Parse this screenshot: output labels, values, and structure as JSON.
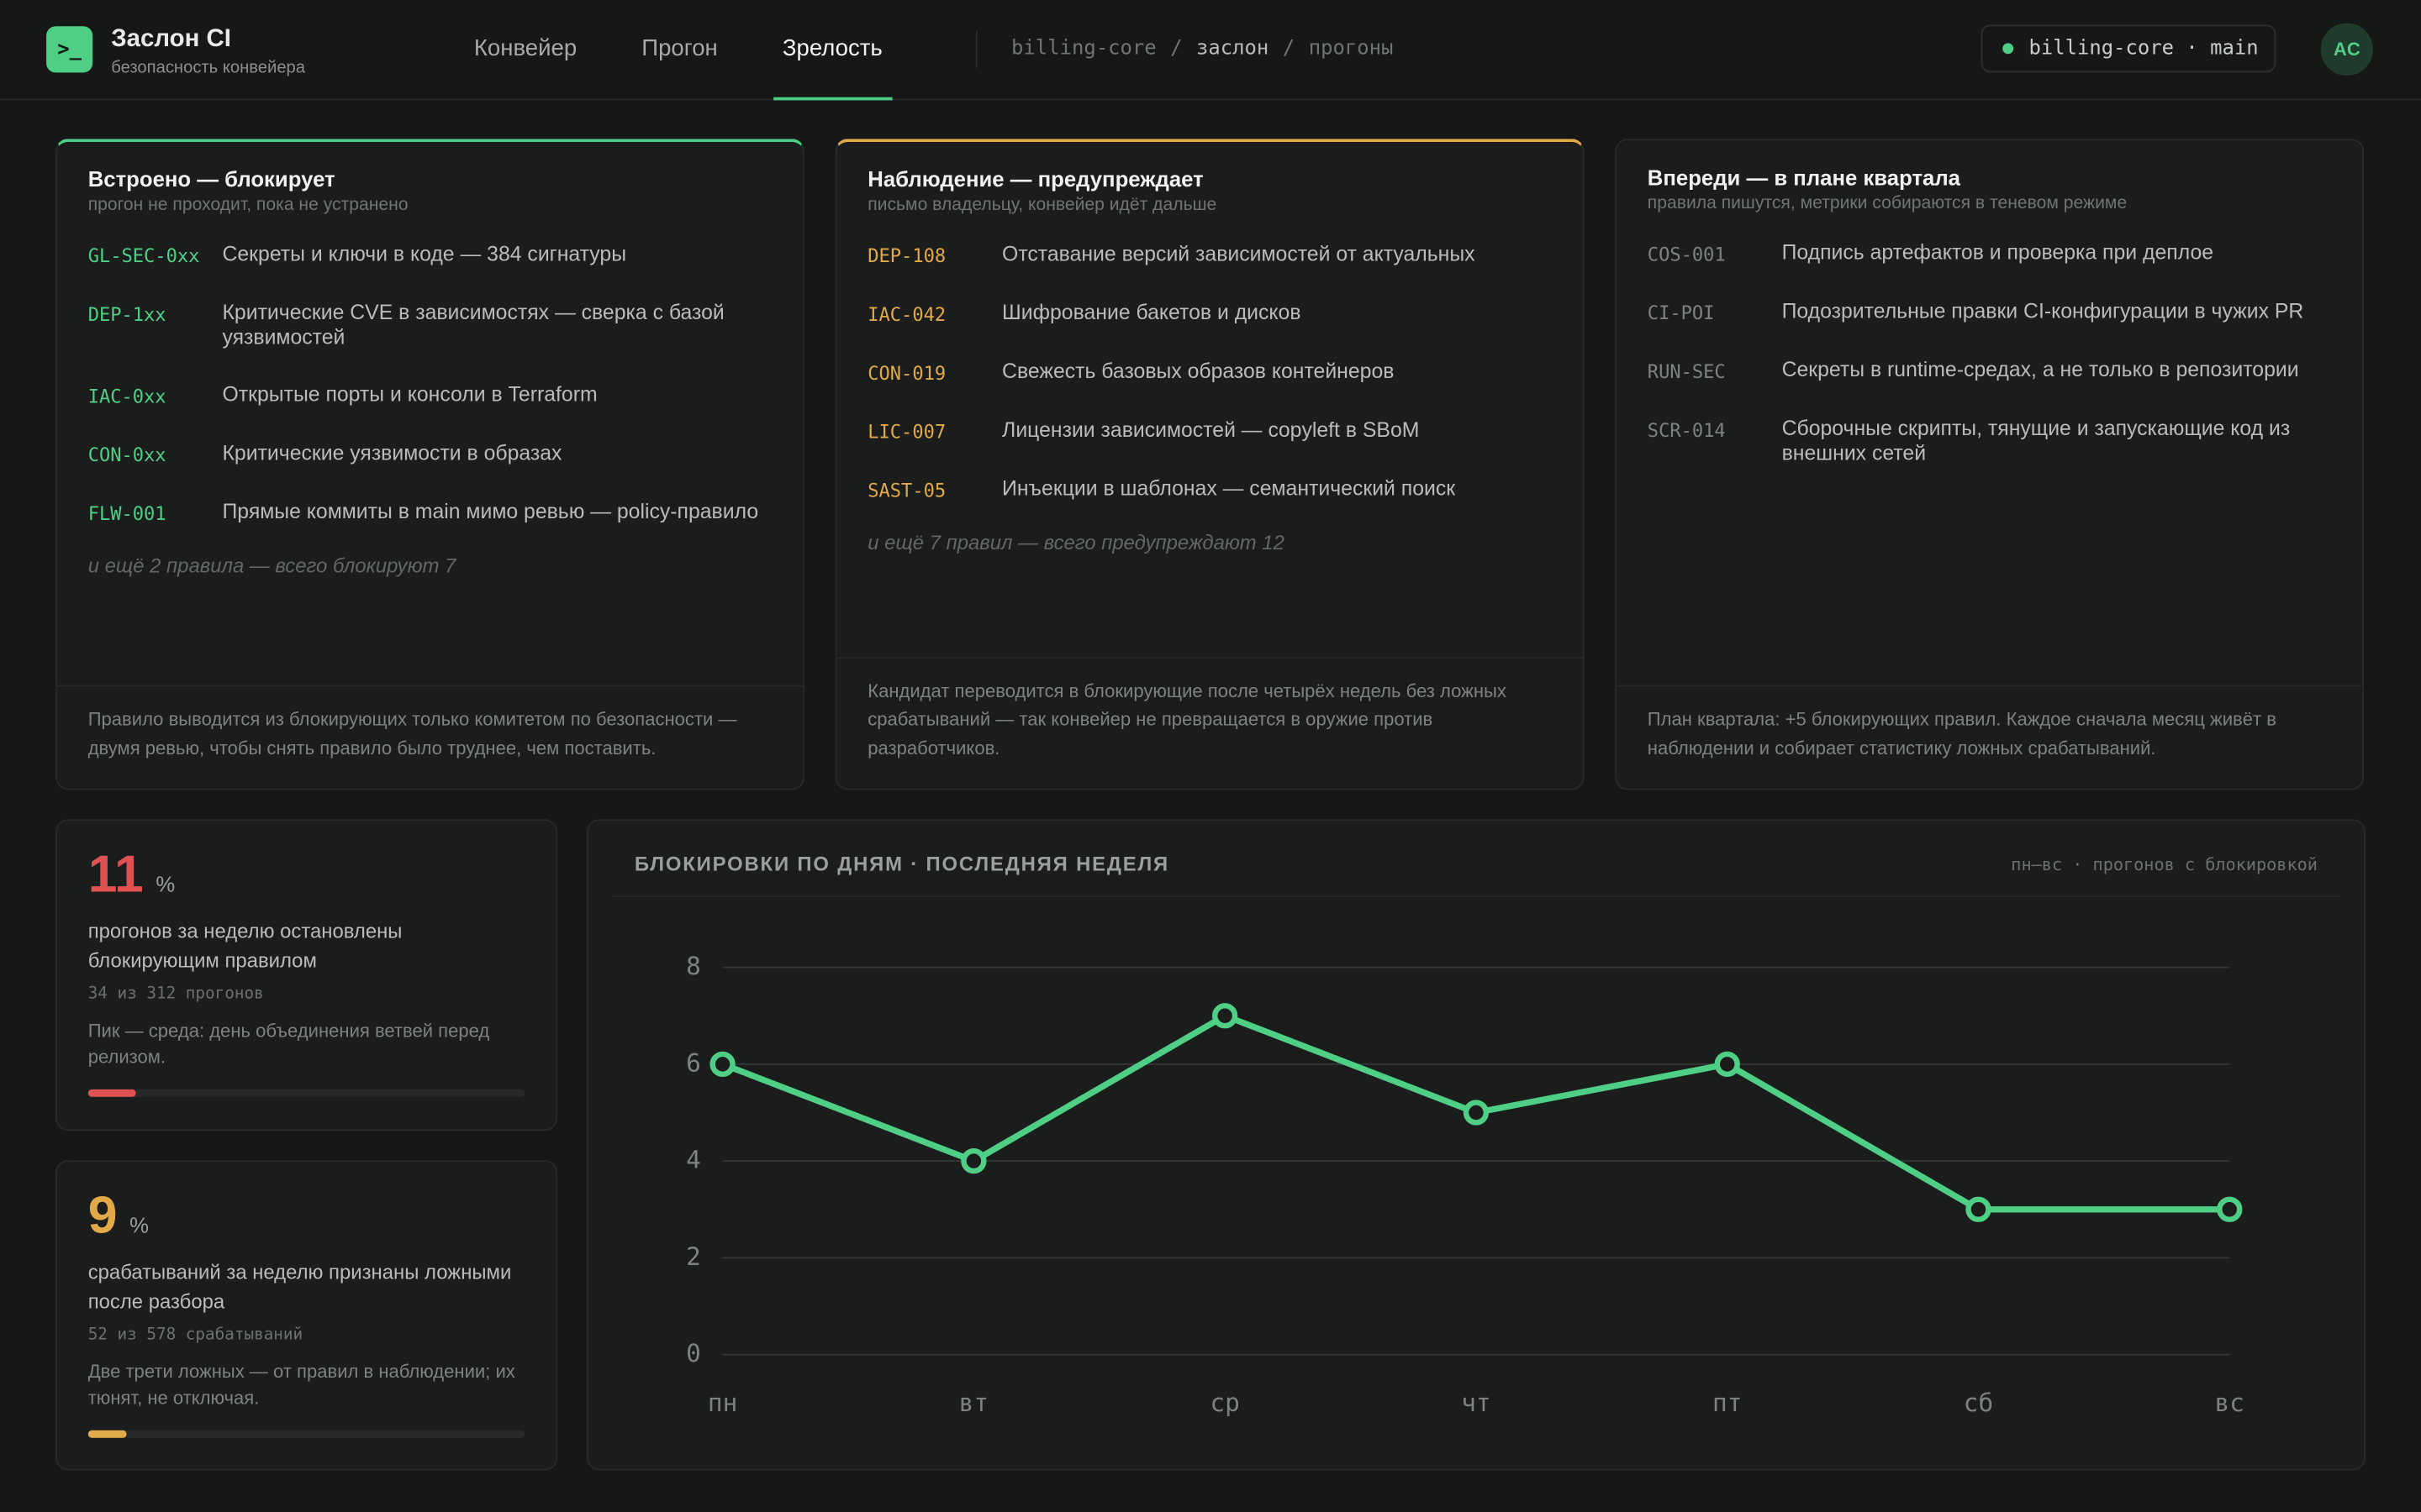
{
  "header": {
    "logo": ">_",
    "title": "Заслон CI",
    "subtitle": "безопасность конвейера",
    "nav": [
      "Конвейер",
      "Прогон",
      "Зрелость"
    ],
    "active_nav": 2,
    "breadcrumb": [
      "billing-core",
      "заслон",
      "прогоны"
    ],
    "breadcrumb_separator": "/",
    "branch": "billing-core · main",
    "avatar": "AC"
  },
  "cards": [
    {
      "title": "Встроено — блокирует",
      "subtitle": "прогон не проходит, пока не устранено",
      "color": "#4fcf86",
      "rules": [
        {
          "code": "GL-SEC-0xx",
          "text": "Секреты и ключи в коде — 384 сигнатуры"
        },
        {
          "code": "DEP-1xx",
          "text": "Критические CVE в зависимостях — сверка с базой уязвимостей"
        },
        {
          "code": "IAC-0xx",
          "text": "Открытые порты и консоли в Terraform"
        },
        {
          "code": "CON-0xx",
          "text": "Критические уязвимости в образах"
        },
        {
          "code": "FLW-001",
          "text": "Прямые коммиты в main мимо ревью — policy-правило"
        }
      ],
      "more": "и ещё 2 правила — всего блокируют 7",
      "footer": "Правило выводится из блокирующих только комитетом по безопасности — двумя ревью, чтобы снять правило было труднее, чем поставить."
    },
    {
      "title": "Наблюдение — предупреждает",
      "subtitle": "письмо владельцу, конвейер идёт дальше",
      "color": "#e2a948",
      "rules": [
        {
          "code": "DEP-108",
          "text": "Отставание версий зависимостей от актуальных"
        },
        {
          "code": "IAC-042",
          "text": "Шифрование бакетов и дисков"
        },
        {
          "code": "CON-019",
          "text": "Свежесть базовых образов контейнеров"
        },
        {
          "code": "LIC-007",
          "text": "Лицензии зависимостей — copyleft в SBoM"
        },
        {
          "code": "SAST-05",
          "text": "Инъекции в шаблонах — семантический поиск"
        }
      ],
      "more": "и ещё 7 правил — всего предупреждают 12",
      "footer": "Кандидат переводится в блокирующие после четырёх недель без ложных срабатываний — так конвейер не превращается в оружие против разработчиков."
    },
    {
      "title": "Впереди — в плане квартала",
      "subtitle": "правила пишутся, метрики собираются в теневом режиме",
      "color": "#7d8380",
      "rules": [
        {
          "code": "COS-001",
          "text": "Подпись артефактов и проверка при деплое"
        },
        {
          "code": "CI-POI",
          "text": "Подозрительные правки CI-конфигурации в чужих PR"
        },
        {
          "code": "RUN-SEC",
          "text": "Секреты в runtime-средах, а не только в репозитории"
        },
        {
          "code": "SCR-014",
          "text": "Сборочные скрипты, тянущие и запускающие код из внешних сетей"
        }
      ],
      "footer": "План квартала: +5 блокирующих правил. Каждое сначала месяц живёт в наблюдении и собирает статистику ложных срабатываний."
    }
  ],
  "stats": [
    {
      "value": 11,
      "unit": "%",
      "color": "#e05252",
      "label": "прогонов за неделю остановлены блокирующим правилом",
      "detail": "34 из 312 прогонов",
      "note": "Пик — среда: день объединения ветвей перед релизом."
    },
    {
      "value": 9,
      "unit": "%",
      "color": "#e2a948",
      "label": "срабатываний за неделю признаны ложными после разбора",
      "detail": "52 из 578 срабатываний",
      "note": "Две трети ложных — от правил в наблюдении; их тюнят, не отключая."
    }
  ],
  "chart_data": {
    "type": "line",
    "title": "БЛОКИРОВКИ ПО ДНЯМ · ПОСЛЕДНЯЯ НЕДЕЛЯ",
    "note": "пн–вс · прогонов с блокировкой",
    "categories": [
      "пн",
      "вт",
      "ср",
      "чт",
      "пт",
      "сб",
      "вс"
    ],
    "values": [
      6,
      4,
      7,
      5,
      6,
      3,
      3
    ],
    "color": "#4fcf86",
    "ylim": [
      0,
      8
    ],
    "yticks": [
      0,
      2,
      4,
      6,
      8
    ],
    "grid": true
  }
}
